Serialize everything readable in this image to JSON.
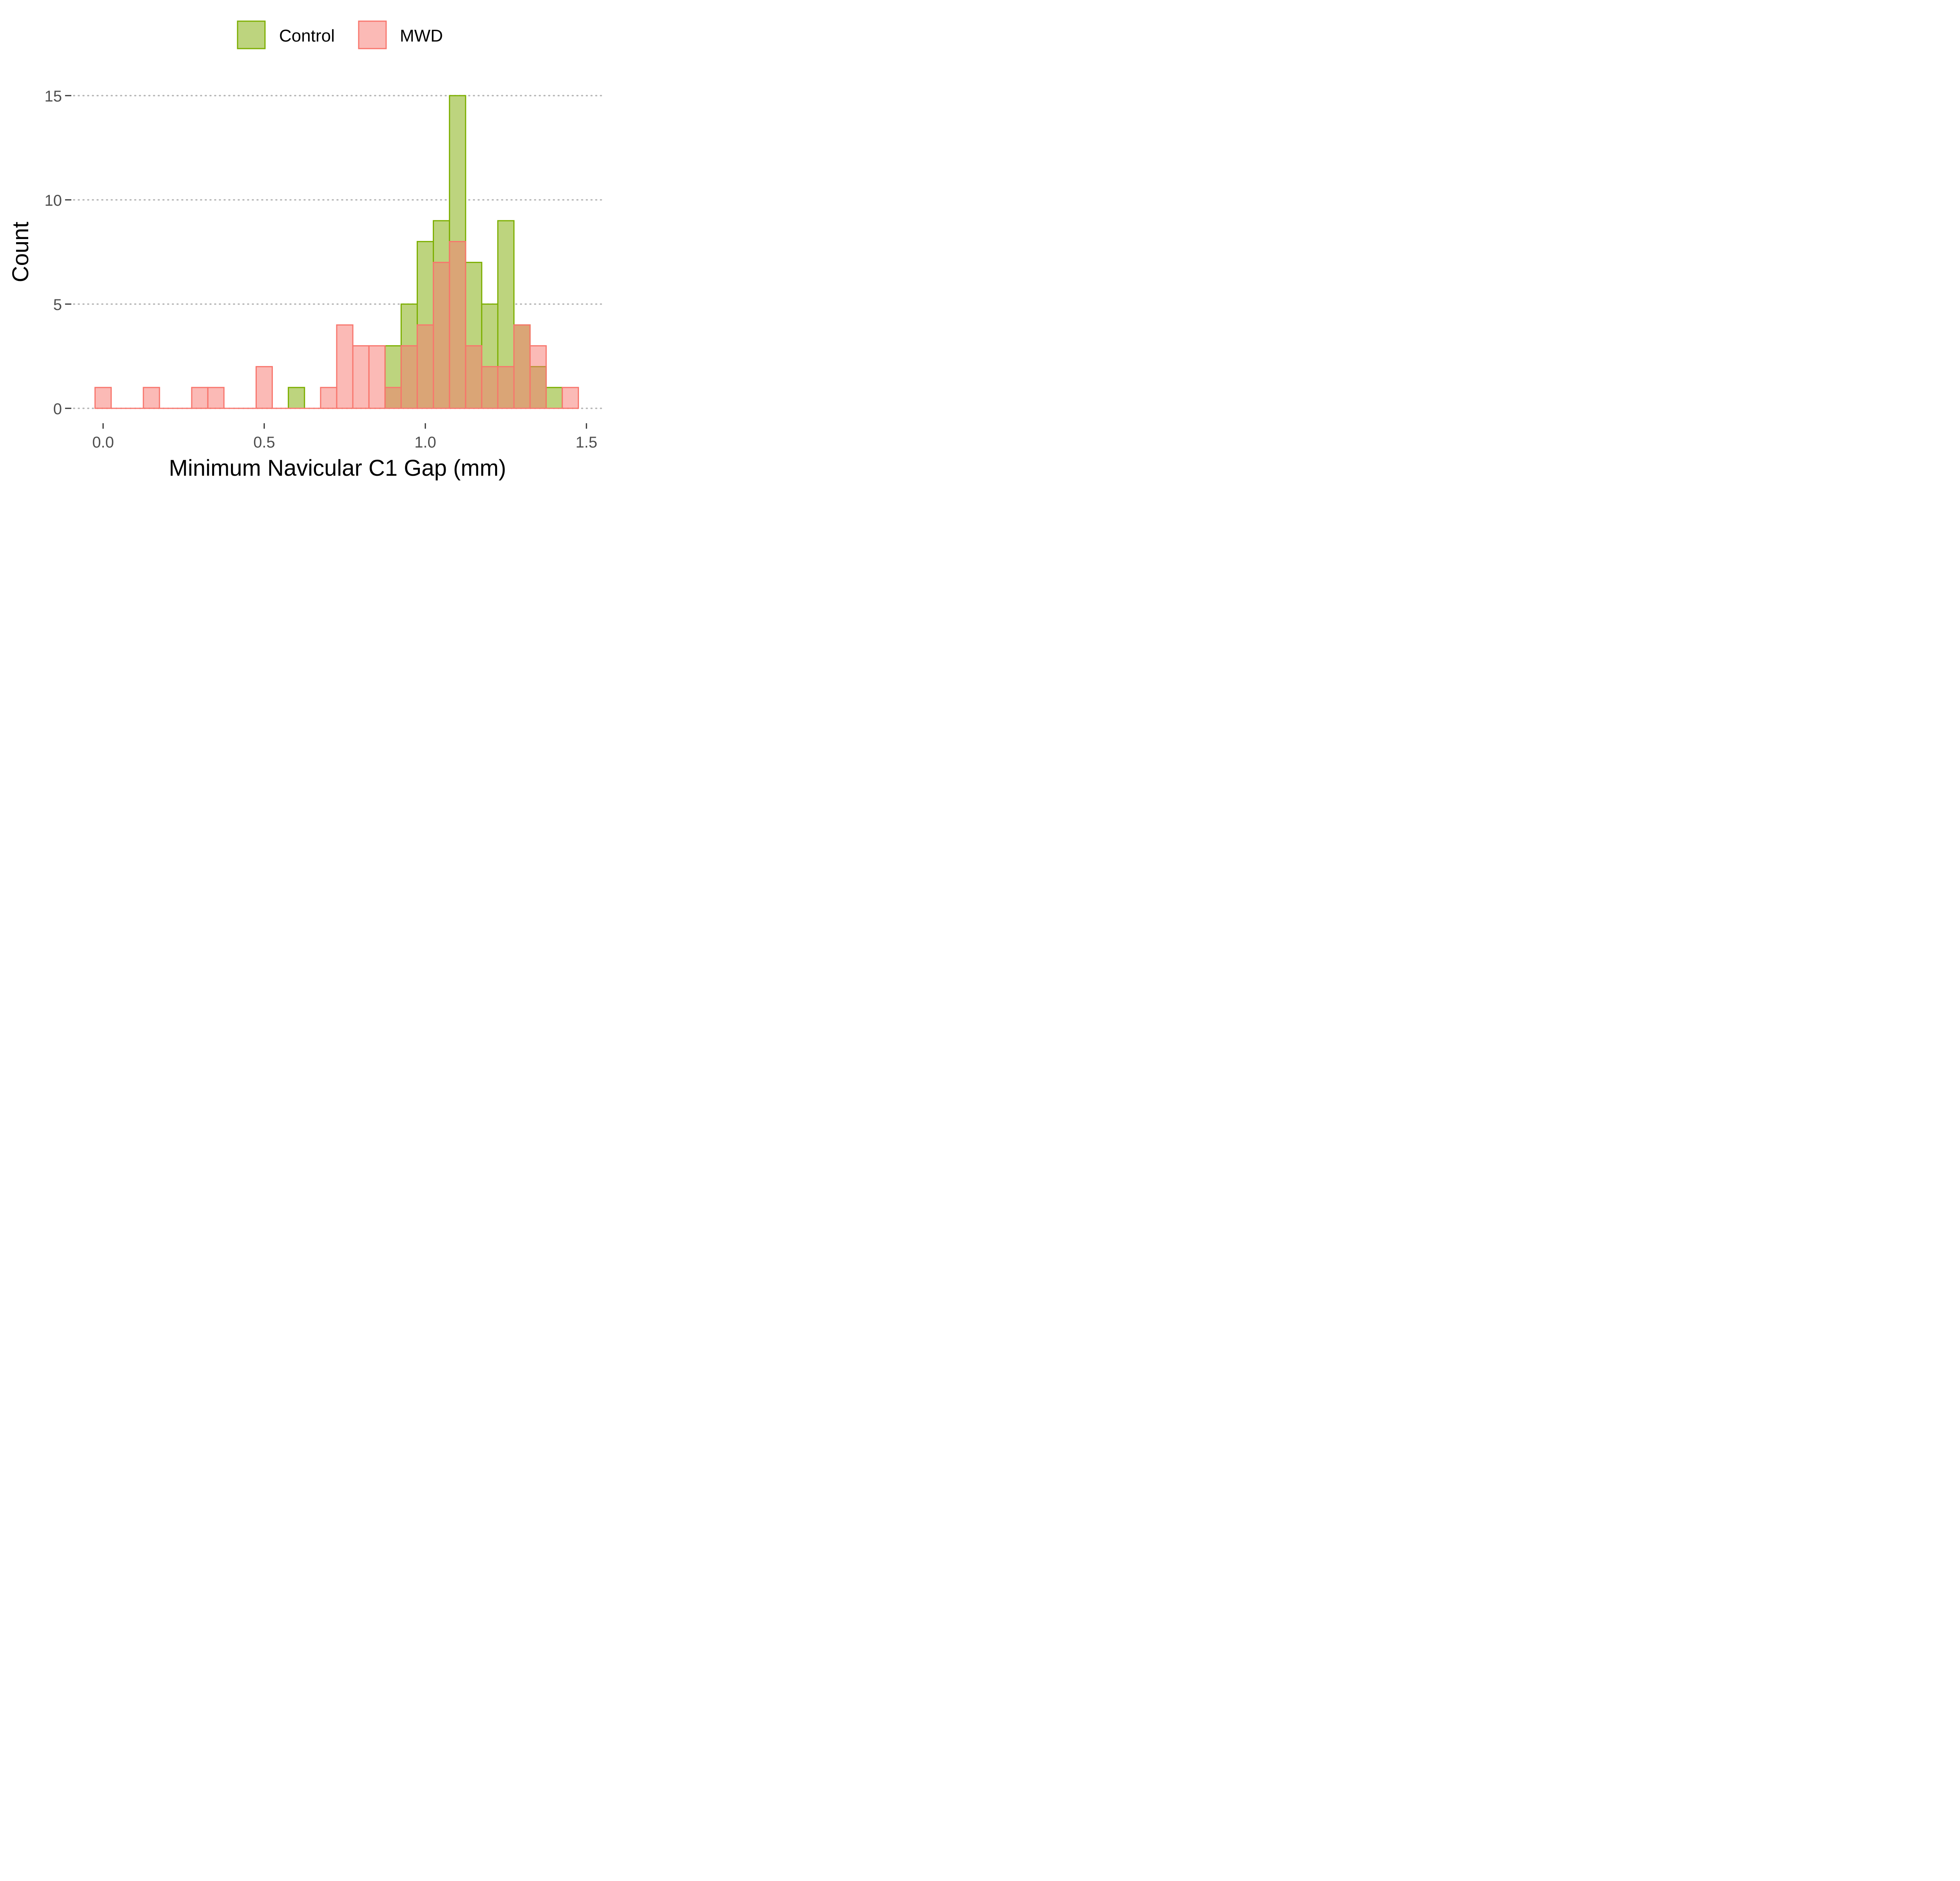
{
  "chart_data": {
    "type": "bar",
    "subtype": "overlaid-histogram",
    "xlabel": "Minimum Navicular C1 Gap (mm)",
    "ylabel": "Count",
    "xlim": [
      -0.05,
      1.55
    ],
    "ylim": [
      0,
      16
    ],
    "x_ticks": [
      0.0,
      0.5,
      1.0,
      1.5
    ],
    "x_tick_labels": [
      "0.0",
      "0.5",
      "1.0",
      "1.5"
    ],
    "y_ticks": [
      0,
      5,
      10,
      15
    ],
    "y_tick_labels": [
      "0",
      "5",
      "10",
      "15"
    ],
    "grid": "horizontal-dotted",
    "legend_position": "top",
    "bin_width": 0.05,
    "bin_centers": [
      0.0,
      0.05,
      0.1,
      0.15,
      0.2,
      0.25,
      0.3,
      0.35,
      0.4,
      0.45,
      0.5,
      0.55,
      0.6,
      0.65,
      0.7,
      0.75,
      0.8,
      0.85,
      0.9,
      0.95,
      1.0,
      1.05,
      1.1,
      1.15,
      1.2,
      1.25,
      1.3,
      1.35,
      1.4,
      1.45
    ],
    "series": [
      {
        "name": "Control",
        "fill": "#bdd47e",
        "stroke": "#7cae00",
        "values": [
          0,
          0,
          0,
          0,
          0,
          0,
          0,
          0,
          0,
          0,
          0,
          0,
          1,
          0,
          0,
          0,
          0,
          0,
          3,
          5,
          8,
          9,
          15,
          7,
          5,
          9,
          4,
          2,
          1,
          0
        ]
      },
      {
        "name": "MWD",
        "fill": "#f8766d",
        "fill_opacity": 0.5,
        "stroke": "#f8766d",
        "values": [
          1,
          0,
          0,
          1,
          0,
          0,
          1,
          1,
          0,
          0,
          2,
          0,
          0,
          0,
          1,
          4,
          3,
          3,
          1,
          3,
          4,
          7,
          8,
          3,
          2,
          2,
          4,
          3,
          0,
          1
        ]
      }
    ]
  }
}
